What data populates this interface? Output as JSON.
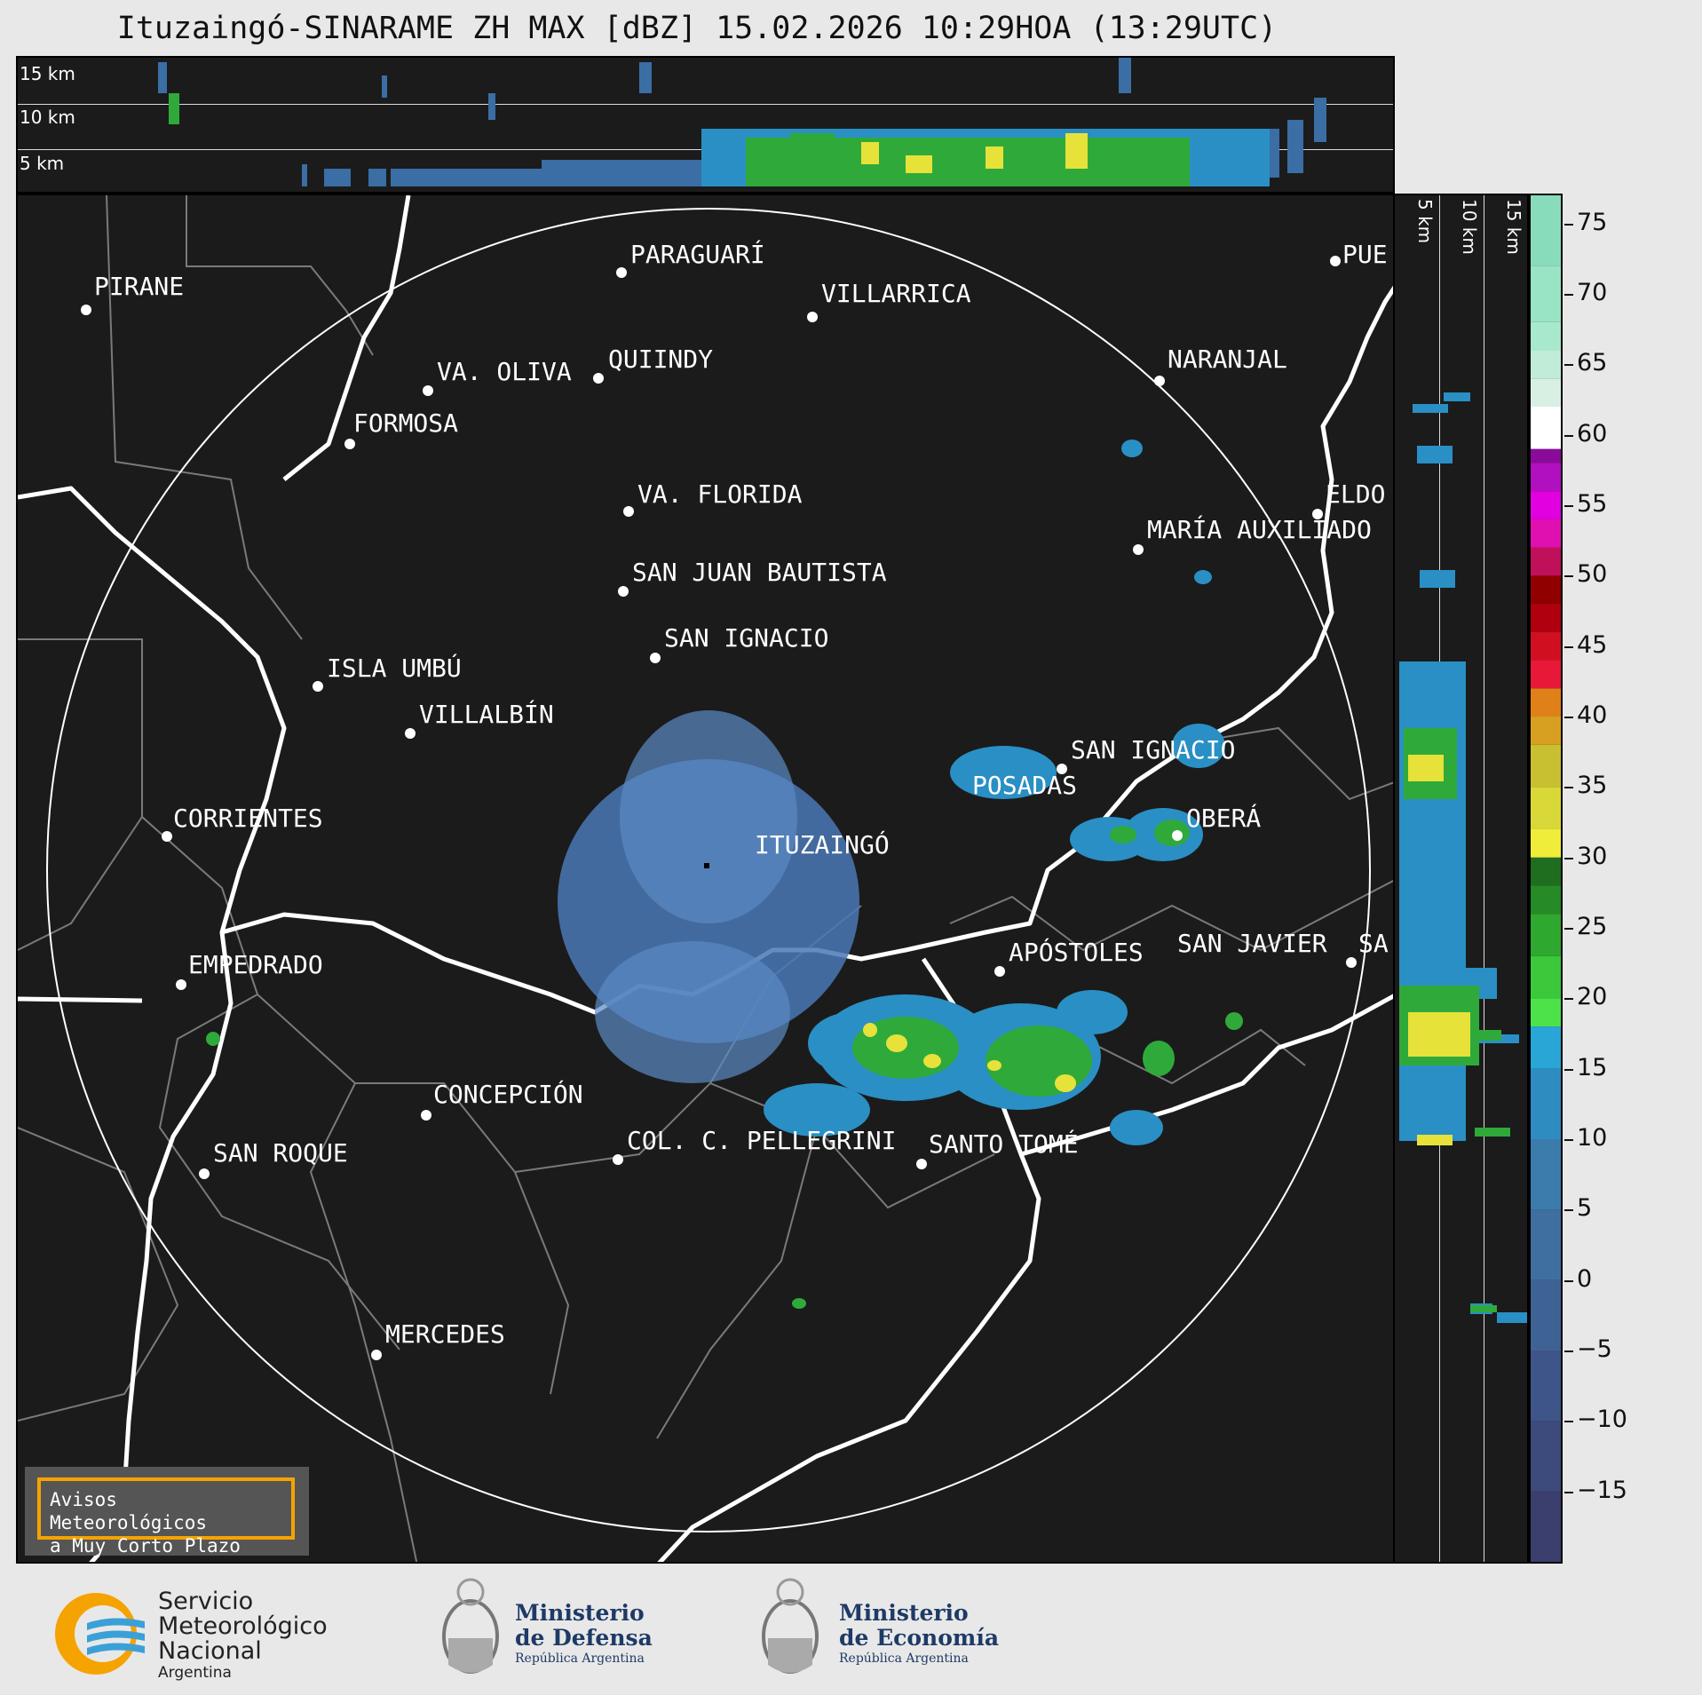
{
  "title": "Ituzaingó-SINARAME ZH MAX [dBZ] 15.02.2026 10:29HOA (13:29UTC)",
  "top_panel": {
    "labels": [
      "15 km",
      "10 km",
      "5 km"
    ]
  },
  "side_panel": {
    "labels": [
      "5 km",
      "10 km",
      "15 km"
    ]
  },
  "cities": [
    {
      "name": "PIRANE"
    },
    {
      "name": "PARAGUARÍ"
    },
    {
      "name": "VILLARRICA"
    },
    {
      "name": "QUIINDY"
    },
    {
      "name": "VA. OLIVA"
    },
    {
      "name": "NARANJAL"
    },
    {
      "name": "FORMOSA"
    },
    {
      "name": "PUE"
    },
    {
      "name": "ELDO"
    },
    {
      "name": "VA. FLORIDA"
    },
    {
      "name": "MARÍA AUXILIADO"
    },
    {
      "name": "SAN JUAN BAUTISTA"
    },
    {
      "name": "SAN IGNACIO"
    },
    {
      "name": "ISLA UMBÚ"
    },
    {
      "name": "VILLALBÍN"
    },
    {
      "name": "SAN IGNACIO"
    },
    {
      "name": "POSADAS"
    },
    {
      "name": "CORRIENTES"
    },
    {
      "name": "OBERÁ"
    },
    {
      "name": "ITUZAINGÓ"
    },
    {
      "name": "EMPEDRADO"
    },
    {
      "name": "APÓSTOLES"
    },
    {
      "name": "SAN JAVIER"
    },
    {
      "name": "SA"
    },
    {
      "name": "CONCEPCIÓN"
    },
    {
      "name": "COL. C. PELLEGRINI"
    },
    {
      "name": "SANTO TOMÉ"
    },
    {
      "name": "SAN ROQUE"
    },
    {
      "name": "MERCEDES"
    }
  ],
  "warning": {
    "line1": "Avisos Meteorológicos",
    "line2": "a Muy Corto Plazo"
  },
  "colorbar": {
    "unit": "dBZ",
    "ticks": [
      "75",
      "70",
      "65",
      "60",
      "55",
      "50",
      "45",
      "40",
      "35",
      "30",
      "25",
      "20",
      "15",
      "10",
      "5",
      "0",
      "−5",
      "−10",
      "−15"
    ]
  },
  "logos": {
    "smn": {
      "line1": "Servicio",
      "line2": "Meteorológico",
      "line3": "Nacional",
      "line4": "Argentina"
    },
    "defensa": {
      "line1": "Ministerio",
      "line2": "de Defensa",
      "line3": "República Argentina"
    },
    "economia": {
      "line1": "Ministerio",
      "line2": "de Economía",
      "line3": "República Argentina"
    }
  },
  "colors": {
    "panel_bg": "#1b1b1b",
    "river": "#ffffff",
    "border": "#7a7a7a",
    "warning_border": "#f5a300",
    "echo_low": "#3a6ea5",
    "echo_mid": "#2faa3a",
    "echo_high": "#e6e23a"
  }
}
